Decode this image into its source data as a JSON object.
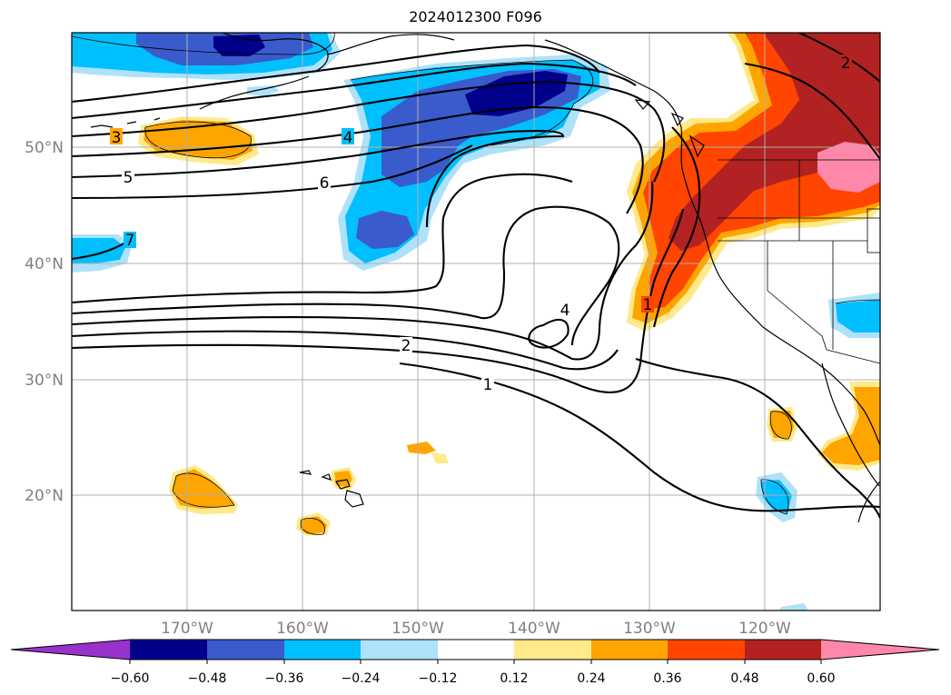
{
  "title": "2024012300 F096",
  "map": {
    "lat_labels": [
      "50°N",
      "40°N",
      "30°N",
      "20°N"
    ],
    "lon_labels": [
      "170°W",
      "160°W",
      "150°W",
      "140°W",
      "130°W",
      "120°W"
    ],
    "contour_labels": [
      "3",
      "4",
      "5",
      "6",
      "7",
      "2",
      "1",
      "4",
      "1",
      "2"
    ]
  },
  "colorbar": {
    "ticks": [
      "−0.60",
      "−0.48",
      "−0.36",
      "−0.24",
      "−0.12",
      "0.12",
      "0.24",
      "0.36",
      "0.48",
      "0.60"
    ],
    "colors": {
      "lt_neg060": "#9932cc",
      "neg060_neg048": "#00008b",
      "neg048_neg036": "#3a5bcc",
      "neg036_neg024": "#00bfff",
      "neg024_neg012": "#aee2fa",
      "neg012_012": "#ffffff",
      "p012_p024": "#ffe98a",
      "p024_p036": "#ffa500",
      "p036_p048": "#ff4500",
      "p048_p060": "#b22222",
      "gt_p060": "#ff88aa"
    }
  }
}
